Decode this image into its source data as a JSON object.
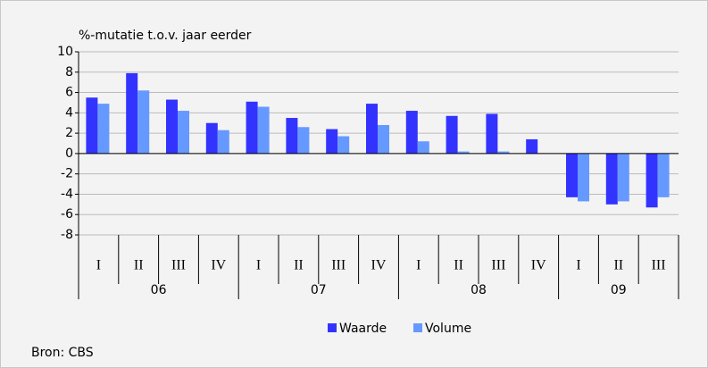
{
  "chart_data": {
    "type": "bar",
    "title": "%-mutatie t.o.v. jaar eerder",
    "source": "Bron: CBS",
    "groups": [
      {
        "name": "06",
        "categories": [
          "I",
          "II",
          "III",
          "IV"
        ]
      },
      {
        "name": "07",
        "categories": [
          "I",
          "II",
          "III",
          "IV"
        ]
      },
      {
        "name": "08",
        "categories": [
          "I",
          "II",
          "III",
          "IV"
        ]
      },
      {
        "name": "09",
        "categories": [
          "I",
          "II",
          "III"
        ]
      }
    ],
    "series": [
      {
        "name": "Waarde",
        "color": "#3333ff",
        "values": [
          5.5,
          7.9,
          5.3,
          3.0,
          5.1,
          3.5,
          2.4,
          4.9,
          4.2,
          3.7,
          3.9,
          1.4,
          -4.3,
          -5.0,
          -5.3
        ]
      },
      {
        "name": "Volume",
        "color": "#6699ff",
        "values": [
          4.9,
          6.2,
          4.2,
          2.3,
          4.6,
          2.6,
          1.7,
          2.8,
          1.2,
          0.2,
          0.2,
          0,
          -4.7,
          -4.7,
          -4.3
        ]
      }
    ],
    "ylim": [
      -8,
      10
    ],
    "yticks": [
      -8,
      -6,
      -4,
      -2,
      0,
      2,
      4,
      6,
      8,
      10
    ],
    "grid": true
  }
}
